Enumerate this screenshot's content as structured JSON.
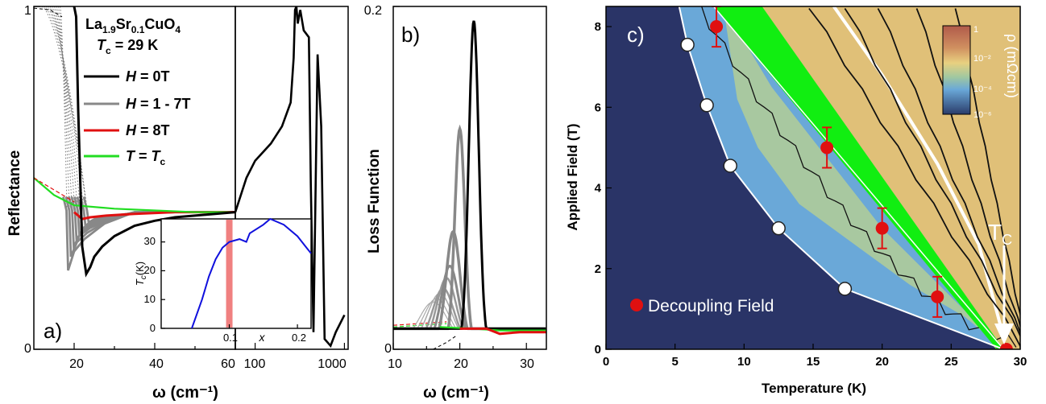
{
  "chart_data": [
    {
      "panel": "a)",
      "type": "line",
      "xlabel": "ω (cm⁻¹)",
      "ylabel": "Reflectance",
      "ylim": [
        0,
        1
      ],
      "y_ticks": [
        "0",
        "1"
      ],
      "x_ticks_linear": [
        "20",
        "40",
        "60"
      ],
      "x_ticks_log": [
        "100",
        "1000"
      ],
      "legend": {
        "title": "La1.9Sr0.1CuO4",
        "subtitle": "Tc = 29 K",
        "entries": [
          {
            "name": "H = 0T",
            "color": "#000000"
          },
          {
            "name": "H = 1 - 7T",
            "color": "#888888"
          },
          {
            "name": "H = 8T",
            "color": "#e01010"
          },
          {
            "name": "T = Tc",
            "color": "#22dd22"
          }
        ]
      },
      "h0_low": {
        "x": [
          20,
          20.5,
          21,
          22,
          23,
          24,
          25,
          27,
          30,
          35,
          40,
          45,
          50,
          55,
          60
        ],
        "y": [
          1.0,
          0.97,
          0.7,
          0.3,
          0.22,
          0.24,
          0.27,
          0.3,
          0.33,
          0.36,
          0.375,
          0.385,
          0.39,
          0.395,
          0.4
        ]
      },
      "h0_high": {
        "x": [
          60,
          80,
          100,
          150,
          200,
          250,
          270,
          280,
          290,
          300,
          320,
          350,
          400,
          420,
          450,
          500,
          550,
          600,
          700,
          800,
          1000
        ],
        "y": [
          0.4,
          0.5,
          0.55,
          0.6,
          0.65,
          0.72,
          0.85,
          0.99,
          1.0,
          0.95,
          0.99,
          0.93,
          0.91,
          0.48,
          0.05,
          0.86,
          0.65,
          0.03,
          0.01,
          0.05,
          0.1
        ]
      },
      "gray_dips": [
        {
          "xmin": 18.5,
          "ymin": 0.23
        },
        {
          "xmin": 19.2,
          "ymin": 0.27
        },
        {
          "xmin": 19.9,
          "ymin": 0.3
        },
        {
          "xmin": 20.6,
          "ymin": 0.32
        },
        {
          "xmin": 21.3,
          "ymin": 0.335
        },
        {
          "xmin": 22.0,
          "ymin": 0.35
        },
        {
          "xmin": 22.8,
          "ymin": 0.36
        },
        {
          "xmin": 23.6,
          "ymin": 0.37
        }
      ],
      "h8": {
        "x": [
          20,
          22,
          24,
          28,
          35,
          45,
          60
        ],
        "y": [
          0.4,
          0.38,
          0.385,
          0.39,
          0.395,
          0.4,
          0.4
        ]
      },
      "tc": {
        "x": [
          10,
          15,
          20,
          30,
          40,
          50,
          60
        ],
        "y": [
          0.5,
          0.45,
          0.42,
          0.41,
          0.405,
          0.4,
          0.4
        ]
      },
      "dotted_x_start": [
        16.5,
        16.0,
        15.5,
        15.0,
        14.5,
        14.0,
        13.5,
        13.0,
        12.5,
        12.0
      ],
      "inset": {
        "xlabel": "x",
        "ylabel": "Tc(K)",
        "x_ticks": [
          "0.1",
          "0.2"
        ],
        "y_ticks": [
          "0",
          "10",
          "20",
          "30"
        ],
        "xlim": [
          0.0,
          0.22
        ],
        "ylim": [
          0,
          38
        ],
        "marker_x": 0.1,
        "x": [
          0.045,
          0.06,
          0.07,
          0.08,
          0.09,
          0.1,
          0.115,
          0.125,
          0.13,
          0.15,
          0.16,
          0.18,
          0.2,
          0.22
        ],
        "y": [
          0,
          10,
          18,
          24,
          28,
          30,
          31,
          30,
          33,
          36,
          38,
          36,
          32,
          26
        ]
      }
    },
    {
      "panel": "b)",
      "type": "line",
      "xlabel": "ω (cm⁻¹)",
      "ylabel": "Loss Function",
      "ylim": [
        0,
        0.2
      ],
      "xlim": [
        10,
        33
      ],
      "y_ticks": [
        "0",
        "0.2"
      ],
      "x_ticks": [
        "10",
        "20",
        "30"
      ],
      "peaks": [
        {
          "center": 22.1,
          "height": 0.188,
          "width": 1.0,
          "color": "#000000",
          "stroke": 3
        },
        {
          "center": 20.0,
          "height": 0.125,
          "width": 1.0,
          "color": "#888888",
          "stroke": 3.5
        },
        {
          "center": 19.0,
          "height": 0.065,
          "width": 1.4,
          "color": "#888888",
          "stroke": 3.5
        },
        {
          "center": 18.5,
          "height": 0.045,
          "width": 1.7,
          "color": "#888888",
          "stroke": 3
        },
        {
          "center": 18.0,
          "height": 0.038,
          "width": 1.9,
          "color": "#999999",
          "stroke": 2.5
        },
        {
          "center": 17.5,
          "height": 0.032,
          "width": 2.1,
          "color": "#999999",
          "stroke": 2.5
        },
        {
          "center": 17.0,
          "height": 0.029,
          "width": 2.4,
          "color": "#aaaaaa",
          "stroke": 1.5
        },
        {
          "center": 16.5,
          "height": 0.026,
          "width": 2.6,
          "color": "#aaaaaa",
          "stroke": 1.2
        },
        {
          "center": 16.0,
          "height": 0.024,
          "width": 2.8,
          "color": "#aaaaaa",
          "stroke": 1.2
        }
      ]
    },
    {
      "panel": "c)",
      "type": "heatmap",
      "xlabel": "Temperature (K)",
      "ylabel": "Applied Field (T)",
      "xlim": [
        0,
        30
      ],
      "ylim": [
        0,
        8.5
      ],
      "x_ticks": [
        "0",
        "5",
        "10",
        "15",
        "20",
        "25",
        "30"
      ],
      "y_ticks": [
        "0",
        "2",
        "4",
        "6",
        "8"
      ],
      "colorbar": {
        "label": "ρ (mΩcm)",
        "ticks": [
          "1",
          "10⁻²",
          "10⁻⁴",
          "10⁻⁶"
        ],
        "colors": [
          "#b05a4a",
          "#d09060",
          "#e8d080",
          "#a0c8a0",
          "#6aa8d8",
          "#2a3c6a"
        ]
      },
      "tc_label": "T",
      "tc_sub": "C",
      "tc_x": 28.8,
      "irreversibility_points": {
        "x": [
          5.9,
          7.3,
          9.0,
          12.5,
          17.3
        ],
        "y": [
          7.55,
          6.05,
          4.55,
          3.0,
          1.5
        ]
      },
      "decoupling_field": {
        "label": "Decoupling Field",
        "x": [
          8.0,
          16.0,
          20.0,
          24.0,
          29.0
        ],
        "y": [
          8.0,
          5.0,
          3.0,
          1.3,
          0.0
        ],
        "err": [
          0.5,
          0.5,
          0.5,
          0.5,
          0
        ]
      },
      "green_band": {
        "upper": [
          [
            8.0,
            8.5
          ],
          [
            29.0,
            0.0
          ]
        ],
        "lower": [
          [
            5.8,
            8.5
          ],
          [
            29.0,
            0.0
          ]
        ]
      }
    }
  ]
}
